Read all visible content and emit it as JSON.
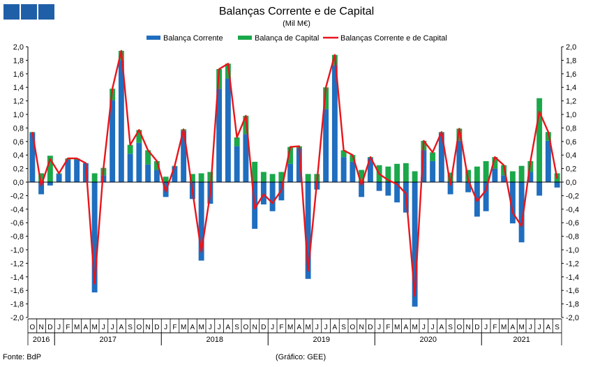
{
  "header": {
    "title": "Balanças Corrente e de Capital",
    "subtitle": "(Mil M€)"
  },
  "footer": {
    "source": "Fonte: BdP",
    "credit": "(Gráfico: GEE)"
  },
  "colors": {
    "current": "#1f6ebf",
    "capital": "#1aa84a",
    "combined": "#e8151b",
    "logo": "#1f5fa8"
  },
  "chart_data": {
    "type": "bar",
    "title": "Balanças Corrente e de Capital",
    "subtitle": "(Mil M€)",
    "ylim": [
      -2.0,
      2.0
    ],
    "ytick_step": 0.2,
    "grid": false,
    "legend_position": "top-center",
    "legend": [
      "Balança Corrente",
      "Balança de Capital",
      "Balanças Corrente e de Capital"
    ],
    "month_labels": [
      "O",
      "N",
      "D",
      "J",
      "F",
      "M",
      "A",
      "M",
      "J",
      "J",
      "A",
      "S",
      "O",
      "N",
      "D",
      "J",
      "F",
      "M",
      "A",
      "M",
      "J",
      "J",
      "A",
      "S",
      "O",
      "N",
      "D",
      "J",
      "F",
      "M",
      "A",
      "M",
      "J",
      "J",
      "A",
      "S",
      "O",
      "N",
      "D",
      "J",
      "F",
      "M",
      "A",
      "M",
      "J",
      "J",
      "A",
      "S",
      "O",
      "N",
      "D",
      "J",
      "F",
      "M",
      "A",
      "M",
      "J",
      "J",
      "A",
      "S"
    ],
    "years": [
      {
        "label": "2016",
        "start": 0,
        "count": 3
      },
      {
        "label": "2017",
        "start": 3,
        "count": 12
      },
      {
        "label": "2018",
        "start": 15,
        "count": 12
      },
      {
        "label": "2019",
        "start": 27,
        "count": 12
      },
      {
        "label": "2020",
        "start": 39,
        "count": 12
      },
      {
        "label": "2021",
        "start": 51,
        "count": 9
      }
    ],
    "series": [
      {
        "name": "Balança Corrente",
        "type": "stacked-bar",
        "values": [
          0.73,
          -0.18,
          -0.05,
          0.12,
          0.33,
          0.33,
          0.28,
          -1.63,
          0.1,
          1.21,
          1.8,
          0.42,
          0.58,
          0.26,
          0.18,
          -0.22,
          0.23,
          0.76,
          -0.25,
          -1.16,
          -0.32,
          1.38,
          1.53,
          0.53,
          0.71,
          -0.69,
          -0.33,
          -0.43,
          -0.27,
          0.27,
          0.5,
          -1.43,
          -0.11,
          1.08,
          1.73,
          0.37,
          0.3,
          -0.22,
          0.36,
          -0.13,
          -0.2,
          -0.3,
          -0.45,
          -1.84,
          0.47,
          0.31,
          0.73,
          -0.18,
          0.61,
          -0.15,
          -0.51,
          -0.43,
          0.2,
          0.1,
          -0.61,
          -0.89,
          0.15,
          -0.2,
          0.61,
          -0.08
        ]
      },
      {
        "name": "Balança de Capital",
        "type": "stacked-bar",
        "values": [
          0.01,
          0.13,
          0.39,
          0.01,
          0.02,
          0.02,
          0.0,
          0.13,
          0.11,
          0.17,
          0.14,
          0.13,
          0.19,
          0.21,
          0.13,
          0.08,
          0.01,
          0.02,
          0.12,
          0.13,
          0.15,
          0.29,
          0.22,
          0.13,
          0.27,
          0.3,
          0.15,
          0.12,
          0.15,
          0.25,
          0.03,
          0.12,
          0.12,
          0.32,
          0.15,
          0.1,
          0.1,
          0.18,
          0.01,
          0.25,
          0.23,
          0.27,
          0.28,
          0.16,
          0.14,
          0.13,
          0.01,
          0.14,
          0.18,
          0.18,
          0.23,
          0.31,
          0.17,
          0.15,
          0.16,
          0.24,
          0.16,
          1.24,
          0.13,
          0.13
        ]
      },
      {
        "name": "Balanças Corrente e de Capital",
        "type": "line",
        "values": [
          0.74,
          -0.05,
          0.34,
          0.13,
          0.35,
          0.35,
          0.28,
          -1.5,
          0.21,
          1.38,
          1.94,
          0.55,
          0.77,
          0.47,
          0.31,
          -0.14,
          0.24,
          0.78,
          -0.13,
          -1.03,
          -0.17,
          1.67,
          1.75,
          0.66,
          0.98,
          -0.39,
          -0.18,
          -0.31,
          -0.12,
          0.52,
          0.53,
          -1.31,
          0.01,
          1.4,
          1.88,
          0.47,
          0.4,
          -0.04,
          0.37,
          0.12,
          0.03,
          -0.03,
          -0.17,
          -1.68,
          0.61,
          0.44,
          0.74,
          -0.04,
          0.79,
          0.03,
          -0.28,
          -0.12,
          0.37,
          0.25,
          -0.45,
          -0.65,
          0.31,
          1.04,
          0.74,
          0.05
        ]
      }
    ]
  }
}
